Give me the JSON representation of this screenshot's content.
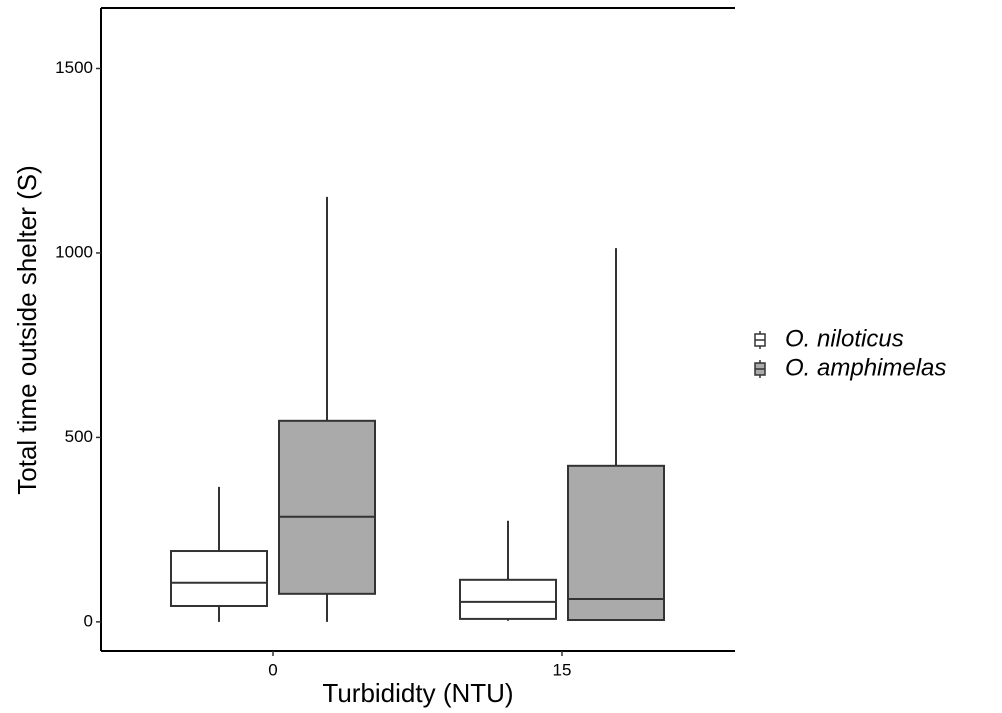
{
  "chart_data": {
    "type": "box",
    "x_label": "Turbididty (NTU)",
    "y_label": "Total time outside shelter (S)",
    "categories": [
      "0",
      "15"
    ],
    "ylim": [
      -79,
      1664
    ],
    "yticks": [
      0,
      500,
      1000,
      1500
    ],
    "legend": "right",
    "series": [
      {
        "name": "O. niloticus",
        "color": "#ffffff",
        "min": [
          0,
          3
        ],
        "q1": [
          43,
          8
        ],
        "median": [
          106,
          54
        ],
        "q3": [
          192,
          114
        ],
        "max": [
          366,
          274
        ]
      },
      {
        "name": "O. amphimelas",
        "color": "#aaaaaa",
        "min": [
          0,
          3
        ],
        "q1": [
          76,
          5
        ],
        "median": [
          285,
          62
        ],
        "q3": [
          545,
          423
        ],
        "max": [
          1152,
          1013
        ]
      }
    ]
  }
}
